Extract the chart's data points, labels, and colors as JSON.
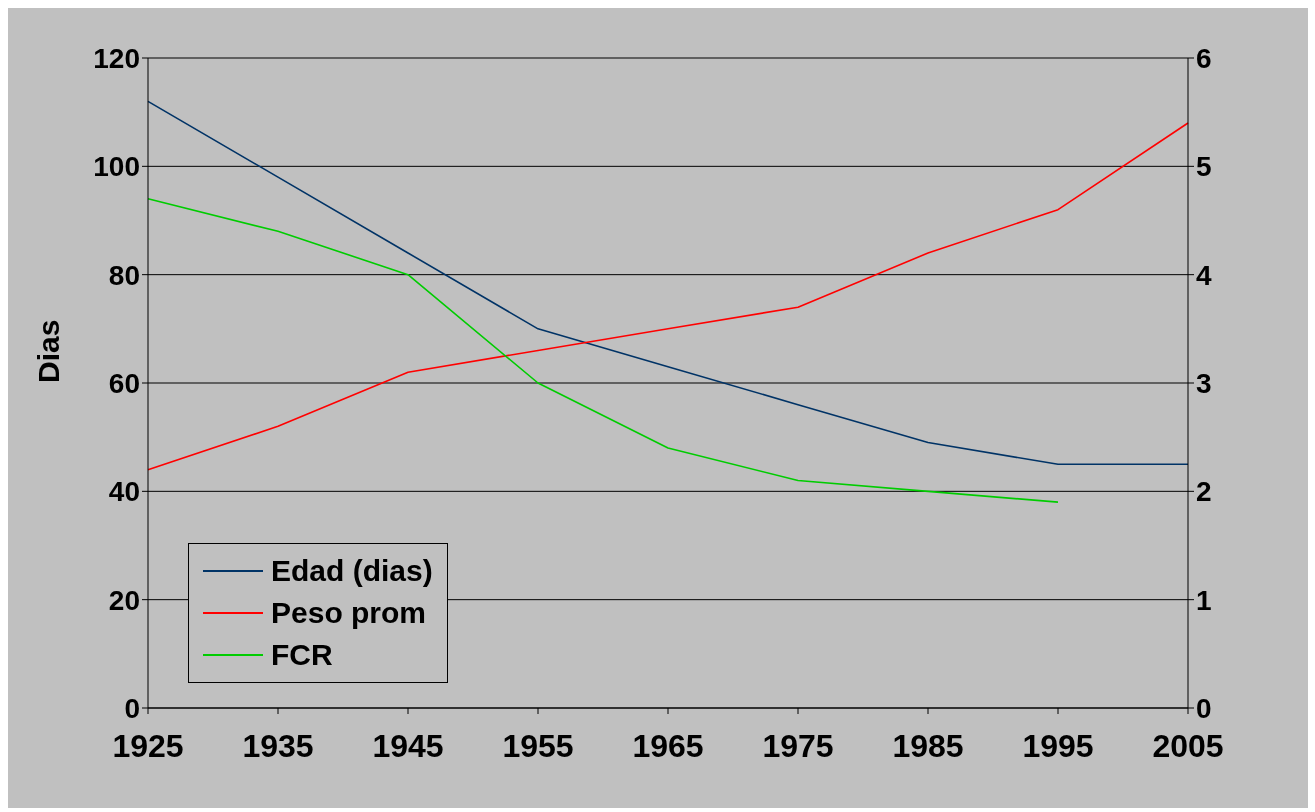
{
  "chart_data": {
    "type": "line",
    "ylabel": "Dias",
    "categories": [
      "1925",
      "1935",
      "1945",
      "1955",
      "1965",
      "1975",
      "1985",
      "1995",
      "2005"
    ],
    "series": [
      {
        "name": "Edad (dias)",
        "color": "#003366",
        "values": [
          112,
          98,
          84,
          70,
          63,
          56,
          49,
          45,
          45
        ]
      },
      {
        "name": "Peso prom",
        "color": "#ff0000",
        "axis": "y2",
        "values": [
          2.2,
          2.6,
          3.1,
          3.3,
          3.5,
          3.7,
          4.2,
          4.6,
          5.4
        ]
      },
      {
        "name": "FCR",
        "color": "#00cc00",
        "axis": "y2",
        "values": [
          4.7,
          4.4,
          4.0,
          3.0,
          2.4,
          2.1,
          2.0,
          1.9,
          null
        ]
      }
    ],
    "ylim": [
      0,
      120
    ],
    "yticks": [
      0,
      20,
      40,
      60,
      80,
      100,
      120
    ],
    "y2lim": [
      0,
      6
    ],
    "y2ticks": [
      0,
      1,
      2,
      3,
      4,
      5,
      6
    ],
    "grid": "y",
    "legend": "bottom left",
    "marker": "none",
    "line_style": "solid"
  }
}
